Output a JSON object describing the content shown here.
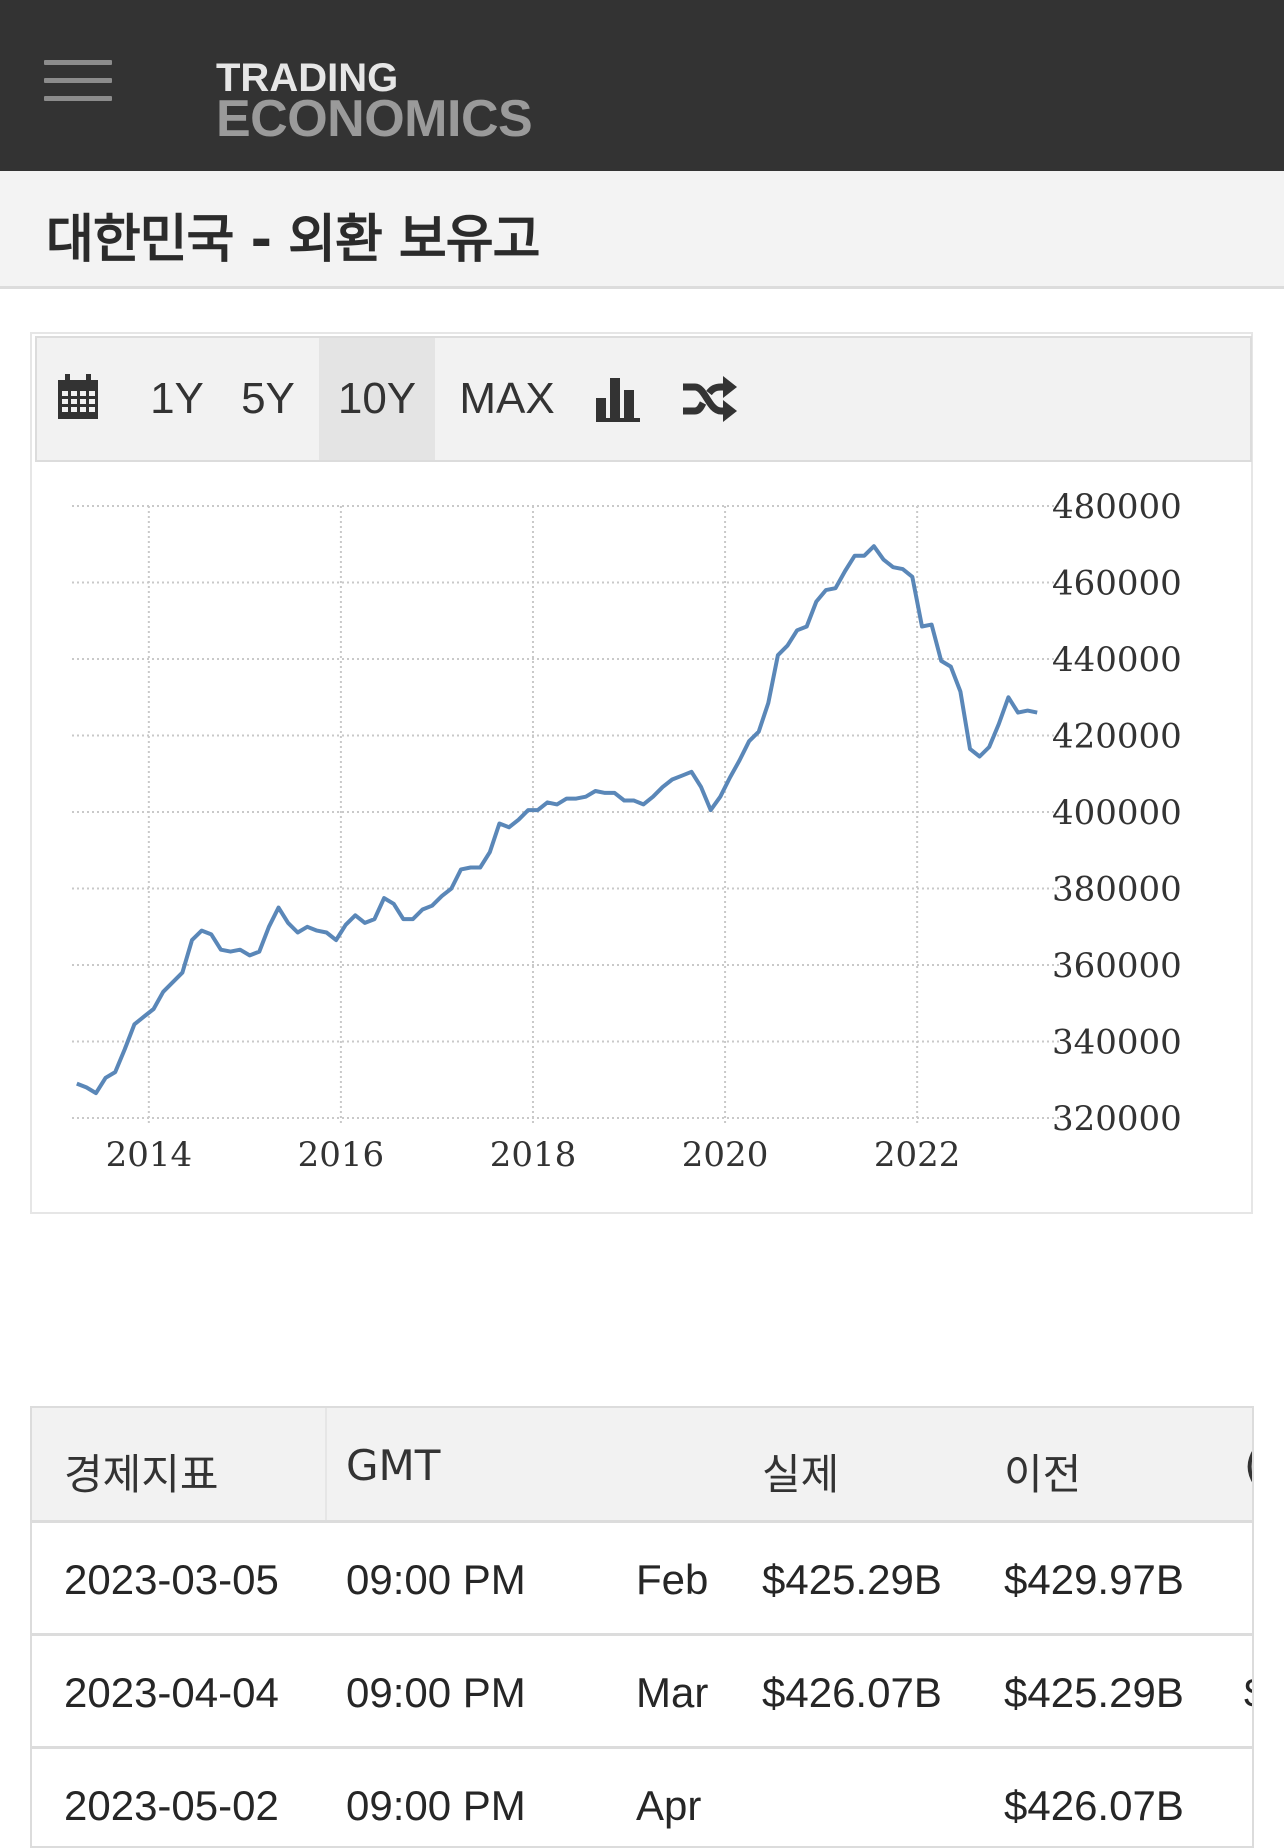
{
  "header": {
    "logo_line1": "TRADING",
    "logo_line2": "ECONOMICS",
    "menu_icon": "hamburger-menu-icon"
  },
  "page_title": "대한민국 - 외환 보유고",
  "chart_toolbar": {
    "calendar_icon": "calendar-icon",
    "ranges": [
      "1Y",
      "5Y",
      "10Y",
      "MAX"
    ],
    "active_range": "10Y",
    "chart_type_icon": "bar-chart-icon",
    "compare_icon": "shuffle-icon"
  },
  "chart_data": {
    "type": "line",
    "title": "",
    "xlabel": "",
    "ylabel": "",
    "x_tick_labels": [
      "2014",
      "2016",
      "2018",
      "2020",
      "2022"
    ],
    "y_tick_labels": [
      "480000",
      "460000",
      "440000",
      "420000",
      "400000",
      "380000",
      "360000",
      "340000",
      "320000"
    ],
    "ylim": [
      320000,
      480000
    ],
    "xlim": [
      2013.2,
      2023.3
    ],
    "grid": true,
    "y_axis_position": "right",
    "line_color": "#5a87b8",
    "series": [
      {
        "x": [
          2013.25,
          2013.35,
          2013.45,
          2013.55,
          2013.65,
          2013.75,
          2013.85,
          2013.95,
          2014.05,
          2014.15,
          2014.25,
          2014.35,
          2014.45,
          2014.55,
          2014.65,
          2014.75,
          2014.85,
          2014.95,
          2015.05,
          2015.15,
          2015.25,
          2015.35,
          2015.45,
          2015.55,
          2015.65,
          2015.75,
          2015.85,
          2015.95,
          2016.05,
          2016.15,
          2016.25,
          2016.35,
          2016.45,
          2016.55,
          2016.65,
          2016.75,
          2016.85,
          2016.95,
          2017.05,
          2017.15,
          2017.25,
          2017.35,
          2017.45,
          2017.55,
          2017.65,
          2017.75,
          2017.85,
          2017.95,
          2018.05,
          2018.15,
          2018.25,
          2018.35,
          2018.45,
          2018.55,
          2018.65,
          2018.75,
          2018.85,
          2018.95,
          2019.05,
          2019.15,
          2019.25,
          2019.35,
          2019.45,
          2019.55,
          2019.65,
          2019.75,
          2019.85,
          2019.95,
          2020.05,
          2020.15,
          2020.25,
          2020.35,
          2020.45,
          2020.55,
          2020.65,
          2020.75,
          2020.85,
          2020.95,
          2021.05,
          2021.15,
          2021.25,
          2021.35,
          2021.45,
          2021.55,
          2021.65,
          2021.75,
          2021.85,
          2021.95,
          2022.05,
          2022.15,
          2022.25,
          2022.35,
          2022.45,
          2022.55,
          2022.65,
          2022.75,
          2022.85,
          2022.95,
          2023.05,
          2023.15,
          2023.25
        ],
        "values": [
          329000,
          328000,
          326500,
          330500,
          332000,
          338000,
          344500,
          346500,
          348500,
          353000,
          355500,
          358000,
          366500,
          369000,
          368000,
          364000,
          363500,
          364000,
          362500,
          363500,
          370000,
          375000,
          371000,
          368500,
          370000,
          369000,
          368500,
          366500,
          370500,
          373000,
          371000,
          372000,
          377500,
          376000,
          372000,
          372000,
          374500,
          375500,
          378000,
          380000,
          385000,
          385500,
          385500,
          389500,
          397000,
          396000,
          398000,
          400500,
          400500,
          402500,
          402000,
          403500,
          403500,
          404000,
          405500,
          405000,
          405000,
          403000,
          403000,
          402000,
          404000,
          406500,
          408500,
          409500,
          410500,
          406500,
          400500,
          404000,
          409000,
          413500,
          418500,
          421000,
          428500,
          441000,
          443500,
          447500,
          448500,
          455000,
          458000,
          458500,
          463000,
          467000,
          467000,
          469500,
          466000,
          464000,
          463500,
          461500,
          448500,
          449000,
          439500,
          438000,
          431500,
          416500,
          414500,
          417000,
          423000,
          430000,
          426000,
          426500,
          426000
        ]
      }
    ]
  },
  "table": {
    "headers": [
      "경제지표",
      "GMT",
      "",
      "실제",
      "이전",
      "("
    ],
    "rows": [
      {
        "date": "2023-03-05",
        "time": "09:00 PM",
        "ref": "Feb",
        "actual": "$425.29B",
        "previous": "$429.97B",
        "extra": ""
      },
      {
        "date": "2023-04-04",
        "time": "09:00 PM",
        "ref": "Mar",
        "actual": "$426.07B",
        "previous": "$425.29B",
        "extra": "$"
      },
      {
        "date": "2023-05-02",
        "time": "09:00 PM",
        "ref": "Apr",
        "actual": "",
        "previous": "$426.07B",
        "extra": ""
      }
    ]
  }
}
